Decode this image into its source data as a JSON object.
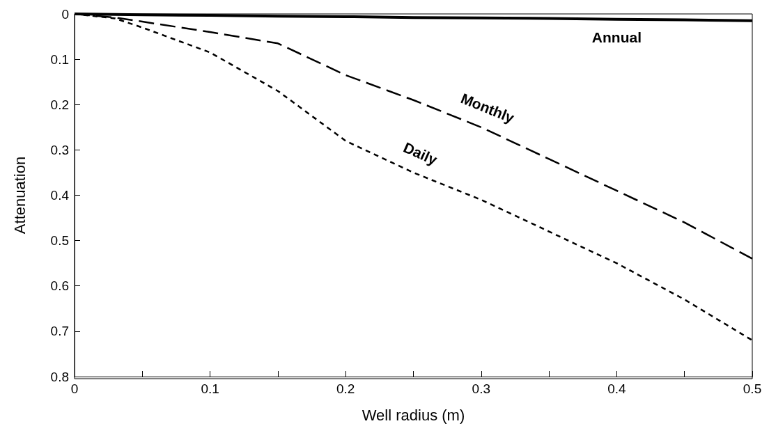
{
  "chart_data": {
    "type": "line",
    "xlabel": "Well radius (m)",
    "ylabel": "Attenuation",
    "x": [
      0,
      0.03,
      0.05,
      0.1,
      0.15,
      0.2,
      0.25,
      0.3,
      0.35,
      0.4,
      0.45,
      0.5
    ],
    "series": [
      {
        "name": "Annual",
        "color": "#000000",
        "line_style": "solid",
        "values": [
          0,
          0.001,
          0.002,
          0.003,
          0.005,
          0.006,
          0.008,
          0.009,
          0.01,
          0.012,
          0.013,
          0.015
        ]
      },
      {
        "name": "Monthly",
        "color": "#000000",
        "line_style": "dashed",
        "values": [
          0,
          0.008,
          0.017,
          0.04,
          0.065,
          0.135,
          0.19,
          0.25,
          0.32,
          0.39,
          0.46,
          0.54
        ]
      },
      {
        "name": "Daily",
        "color": "#000000",
        "line_style": "dotted",
        "values": [
          0,
          0.01,
          0.03,
          0.085,
          0.17,
          0.28,
          0.35,
          0.41,
          0.48,
          0.55,
          0.63,
          0.72
        ]
      }
    ],
    "xlim": [
      0,
      0.5
    ],
    "xticks": [
      0,
      {
        "value": 0.05,
        "label": null
      },
      0.1,
      {
        "value": 0.15,
        "label": null
      },
      0.2,
      {
        "value": 0.25,
        "label": null
      },
      0.3,
      {
        "value": 0.35,
        "label": null
      },
      0.4,
      {
        "value": 0.45,
        "label": null
      },
      0.5
    ],
    "ylim": [
      0.8,
      0
    ],
    "yticks": [
      0,
      0.1,
      0.2,
      0.3,
      0.4,
      0.5,
      0.6,
      0.7,
      0.8
    ],
    "grid": false,
    "legend": false,
    "marker": "none"
  }
}
